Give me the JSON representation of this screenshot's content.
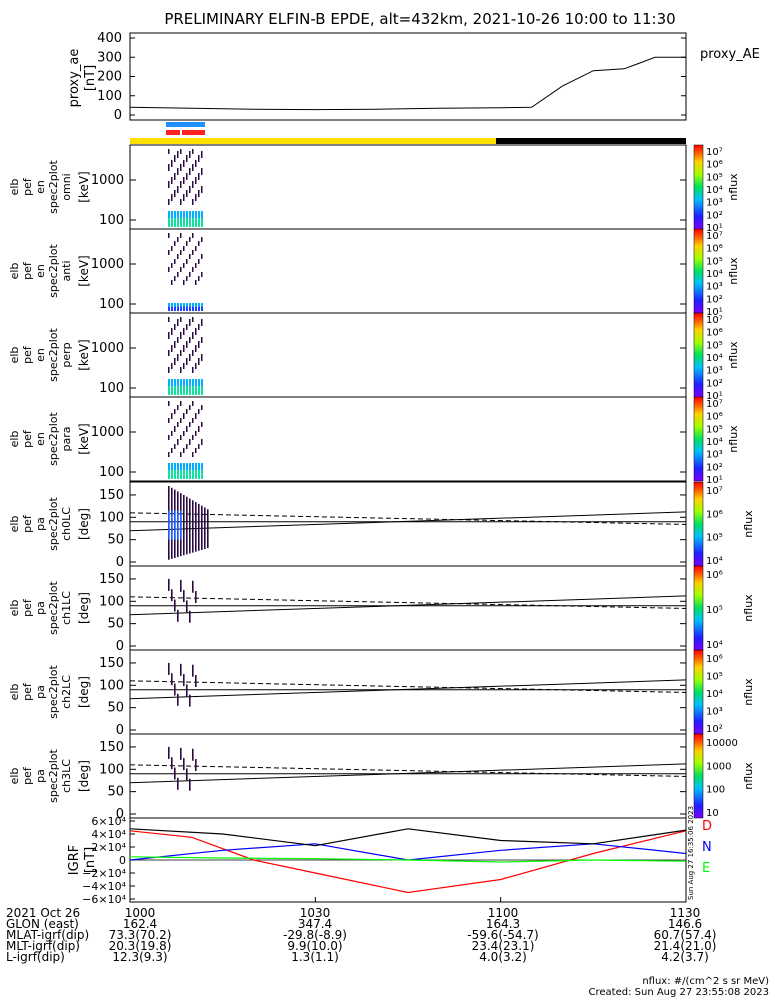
{
  "title": "PRELIMINARY ELFIN-B EPDE, alt=432km, 2021-10-26 10:00 to 11:30",
  "ae_panel": {
    "ylabel": "proxy_ae",
    "yunit": "[nT]",
    "legend": "proxy_AE",
    "yticks": [
      "400",
      "300",
      "200",
      "100",
      "0"
    ]
  },
  "spec_panels": [
    {
      "ylabel": [
        "elb",
        "pef",
        "en",
        "spec2plot",
        "omni"
      ],
      "unit": "[keV]",
      "yticks": [
        "1000",
        "100"
      ]
    },
    {
      "ylabel": [
        "elb",
        "pef",
        "en",
        "spec2plot",
        "anti"
      ],
      "unit": "[keV]",
      "yticks": [
        "1000",
        "100"
      ]
    },
    {
      "ylabel": [
        "elb",
        "pef",
        "en",
        "spec2plot",
        "perp"
      ],
      "unit": "[keV]",
      "yticks": [
        "1000",
        "100"
      ]
    },
    {
      "ylabel": [
        "elb",
        "pef",
        "en",
        "spec2plot",
        "para"
      ],
      "unit": "[keV]",
      "yticks": [
        "1000",
        "100"
      ]
    }
  ],
  "pa_panels": [
    {
      "ylabel": [
        "elb",
        "pef",
        "pa",
        "spec2plot",
        "ch0LC"
      ],
      "unit": "[deg]",
      "yticks": [
        "150",
        "100",
        "50",
        "0"
      ]
    },
    {
      "ylabel": [
        "elb",
        "pef",
        "pa",
        "spec2plot",
        "ch1LC"
      ],
      "unit": "[deg]",
      "yticks": [
        "150",
        "100",
        "50",
        "0"
      ]
    },
    {
      "ylabel": [
        "elb",
        "pef",
        "pa",
        "spec2plot",
        "ch2LC"
      ],
      "unit": "[deg]",
      "yticks": [
        "150",
        "100",
        "50",
        "0"
      ]
    },
    {
      "ylabel": [
        "elb",
        "pef",
        "pa",
        "spec2plot",
        "ch3LC"
      ],
      "unit": "[deg]",
      "yticks": [
        "150",
        "100",
        "50",
        "0"
      ]
    }
  ],
  "colorbars": {
    "label": "nflux",
    "spec": [
      "10⁷",
      "10⁶",
      "10⁵",
      "10⁴",
      "10³",
      "10²",
      "10¹"
    ],
    "pa0": [
      "10⁷",
      "10⁶",
      "10⁵",
      "10⁴"
    ],
    "pa1": [
      "10⁶",
      "10⁵",
      "10⁴"
    ],
    "pa2": [
      "10⁶",
      "10⁵",
      "10⁴",
      "10³",
      "10²"
    ],
    "pa3": [
      "10000",
      "1000",
      "100",
      "10"
    ]
  },
  "igrf_panel": {
    "ylabel": "IGRF",
    "yunit": "[nT]",
    "yticks": [
      "6×10⁴",
      "4×10⁴",
      "2×10⁴",
      "0",
      "−2×10⁴",
      "−4×10⁴",
      "−6×10⁴"
    ],
    "legend": [
      {
        "name": "D",
        "color": "#ff0000"
      },
      {
        "name": "N",
        "color": "#0000ff"
      },
      {
        "name": "E",
        "color": "#00ff00"
      }
    ],
    "stamp": "Sun Aug 27 16:35:06 2023"
  },
  "colors": {
    "ae_bar_yellow": "#ffe000",
    "ae_bar_black": "#000000",
    "marker_blue": "#1e90ff",
    "marker_red": "#ff2020"
  },
  "chart_data": {
    "type": "line",
    "x_ticks": [
      "1000",
      "1030",
      "1100",
      "1130"
    ],
    "ae_series": {
      "x_min": [
        0,
        10,
        20,
        30,
        40,
        50,
        60,
        65,
        70,
        75,
        80,
        85,
        90
      ],
      "values": [
        40,
        35,
        30,
        28,
        30,
        35,
        38,
        40,
        150,
        230,
        240,
        300,
        300
      ],
      "ylim": [
        0,
        400
      ]
    },
    "igrf_series": [
      {
        "name": "D",
        "color": "#ff0000",
        "x_min": [
          0,
          10,
          20,
          30,
          45,
          60,
          75,
          90
        ],
        "values": [
          45000,
          35000,
          0,
          -20000,
          -50000,
          -30000,
          10000,
          45000
        ]
      },
      {
        "name": "N",
        "color": "#0000ff",
        "x_min": [
          0,
          15,
          30,
          45,
          60,
          75,
          90
        ],
        "values": [
          0,
          15000,
          25000,
          0,
          15000,
          25000,
          10000
        ]
      },
      {
        "name": "E",
        "color": "#00ff00",
        "x_min": [
          0,
          15,
          30,
          45,
          60,
          75,
          90
        ],
        "values": [
          5000,
          3000,
          2000,
          0,
          -3000,
          0,
          -2000
        ]
      },
      {
        "name": "total",
        "color": "#000000",
        "x_min": [
          0,
          15,
          30,
          45,
          60,
          75,
          90
        ],
        "values": [
          48000,
          40000,
          22000,
          48000,
          30000,
          25000,
          46000
        ]
      }
    ],
    "ylim_igrf": [
      -60000,
      60000
    ]
  },
  "bottom_table": {
    "rows": [
      {
        "label": "2021 Oct 26",
        "values": [
          "1000",
          "1030",
          "1100",
          "1130"
        ]
      },
      {
        "label": "GLON (east)",
        "values": [
          "162.4",
          "347.4",
          "164.3",
          "146.6"
        ]
      },
      {
        "label": "MLAT-igrf(dip)",
        "values": [
          "73.3(70.2)",
          "-29.8(-8.9)",
          "-59.6(-54.7)",
          "60.7(57.4)"
        ]
      },
      {
        "label": "MLT-igrf(dip)",
        "values": [
          "20.3(19.8)",
          "9.9(10.0)",
          "23.4(23.1)",
          "21.4(21.0)"
        ]
      },
      {
        "label": "L-igrf(dip)",
        "values": [
          "12.3(9.3)",
          "1.3(1.1)",
          "4.0(3.2)",
          "4.2(3.7)"
        ]
      }
    ],
    "footer_units": "nflux: #/(cm^2 s sr MeV)",
    "footer_created": "Created: Sun Aug 27 23:55:08 2023"
  }
}
